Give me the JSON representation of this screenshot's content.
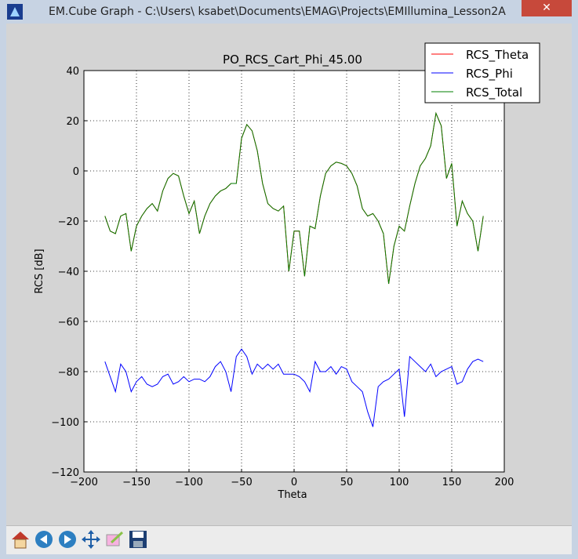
{
  "window": {
    "title": "EM.Cube Graph - C:\\Users\\ ksabet\\Documents\\EMAG\\Projects\\EMIllumina_Lesson2A"
  },
  "chart_data": {
    "type": "line",
    "title": "PO_RCS_Cart_Phi_45.00",
    "xlabel": "Theta",
    "ylabel": "RCS [dB]",
    "xlim": [
      -200,
      200
    ],
    "ylim": [
      -120,
      40
    ],
    "xticks": [
      {
        "value": -200,
        "label": "−200"
      },
      {
        "value": -150,
        "label": "−150"
      },
      {
        "value": -100,
        "label": "−100"
      },
      {
        "value": -50,
        "label": "−50"
      },
      0,
      50,
      100,
      150,
      200
    ],
    "yticks": [
      {
        "value": -120,
        "label": "−120"
      },
      {
        "value": -100,
        "label": "−100"
      },
      {
        "value": -80,
        "label": "−80"
      },
      {
        "value": -60,
        "label": "−60"
      },
      {
        "value": -40,
        "label": "−40"
      },
      {
        "value": -20,
        "label": "−20"
      },
      0,
      20,
      40
    ],
    "grid": true,
    "legend": "upper right",
    "x": [
      -180,
      -175,
      -170,
      -165,
      -160,
      -155,
      -150,
      -145,
      -140,
      -135,
      -130,
      -125,
      -120,
      -115,
      -110,
      -105,
      -100,
      -95,
      -90,
      -85,
      -80,
      -75,
      -70,
      -65,
      -60,
      -55,
      -50,
      -45,
      -40,
      -35,
      -30,
      -25,
      -20,
      -15,
      -10,
      -5,
      0,
      5,
      10,
      15,
      20,
      25,
      30,
      35,
      40,
      45,
      50,
      55,
      60,
      65,
      70,
      75,
      80,
      85,
      90,
      95,
      100,
      105,
      110,
      115,
      120,
      125,
      130,
      135,
      140,
      145,
      150,
      155,
      160,
      165,
      170,
      175,
      180
    ],
    "series": [
      {
        "name": "RCS_Theta",
        "color": "#ff0000",
        "values": [
          -18,
          -24,
          -25,
          -18,
          -17,
          -32,
          -22,
          -18,
          -15,
          -13,
          -16,
          -8,
          -3,
          -1,
          -2,
          -10,
          -17,
          -12,
          -25,
          -18,
          -13,
          -10,
          -8,
          -7,
          -5,
          -5,
          13,
          18.5,
          16,
          8,
          -5,
          -13,
          -15,
          -16,
          -14,
          -40,
          -24,
          -24,
          -42,
          -22,
          -23,
          -10,
          -1,
          2,
          3.5,
          3,
          2,
          -1,
          -6,
          -15,
          -18,
          -17,
          -20,
          -25,
          -45,
          -30,
          -22,
          -24,
          -14,
          -5,
          2,
          5,
          10,
          23,
          18,
          -3,
          3,
          -22,
          -12,
          -17,
          -20,
          -32,
          -18
        ]
      },
      {
        "name": "RCS_Phi",
        "color": "#0000ff",
        "values": [
          -76,
          -82,
          -88,
          -77,
          -80,
          -88,
          -84,
          -82,
          -85,
          -86,
          -85,
          -82,
          -81,
          -85,
          -84,
          -82,
          -84,
          -83,
          -83,
          -84,
          -82,
          -78,
          -76,
          -80,
          -88,
          -74,
          -71,
          -74,
          -81,
          -77,
          -79,
          -77,
          -79,
          -77,
          -81,
          -81,
          -81,
          -82,
          -84,
          -88,
          -76,
          -80,
          -80,
          -78,
          -81,
          -78,
          -79,
          -84,
          -86,
          -88,
          -96,
          -102,
          -86,
          -84,
          -83,
          -81,
          -79,
          -98,
          -74,
          -76,
          -78,
          -80,
          -77,
          -82,
          -80,
          -79,
          -78,
          -85,
          -84,
          -79,
          -76,
          -75,
          -76
        ]
      },
      {
        "name": "RCS_Total",
        "color": "#007f00",
        "values": [
          -18,
          -24,
          -25,
          -18,
          -17,
          -32,
          -22,
          -18,
          -15,
          -13,
          -16,
          -8,
          -3,
          -1,
          -2,
          -10,
          -17,
          -12,
          -25,
          -18,
          -13,
          -10,
          -8,
          -7,
          -5,
          -5,
          13,
          18.5,
          16,
          8,
          -5,
          -13,
          -15,
          -16,
          -14,
          -40,
          -24,
          -24,
          -42,
          -22,
          -23,
          -10,
          -1,
          2,
          3.5,
          3,
          2,
          -1,
          -6,
          -15,
          -18,
          -17,
          -20,
          -25,
          -45,
          -30,
          -22,
          -24,
          -14,
          -5,
          2,
          5,
          10,
          23,
          18,
          -3,
          3,
          -22,
          -12,
          -17,
          -20,
          -32,
          -18
        ]
      }
    ]
  }
}
